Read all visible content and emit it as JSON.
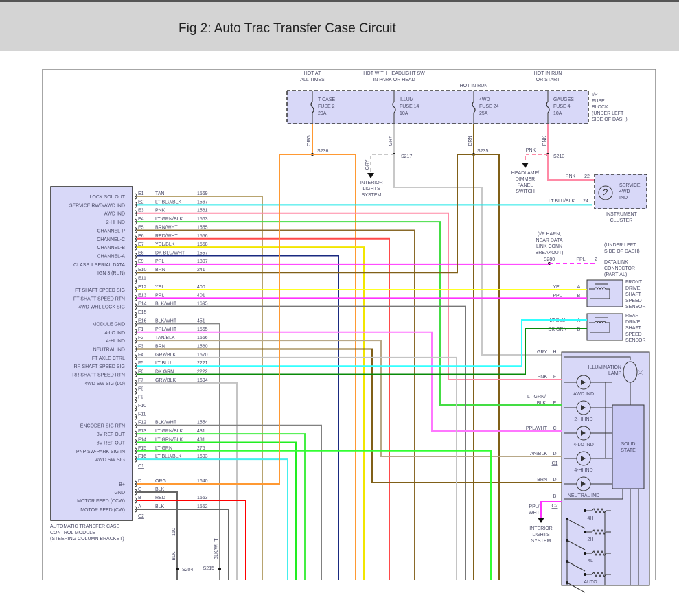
{
  "header": {
    "title": "Fig 2: Auto Trac Transfer Case Circuit"
  },
  "fuse_block": {
    "hot_labels": [
      [
        "HOT AT",
        "ALL TIMES"
      ],
      [
        "HOT WITH HEADLIGHT SW",
        "IN PARK OR HEAD"
      ],
      [
        "HOT IN RUN"
      ],
      [
        "HOT IN RUN",
        "OR START"
      ]
    ],
    "fuses": [
      [
        "T CASE",
        "FUSE 2",
        "20A"
      ],
      [
        "ILLUM",
        "FUSE 14",
        "10A"
      ],
      [
        "4WD",
        "FUSE 24",
        "25A"
      ],
      [
        "GAUGES",
        "FUSE 4",
        "10A"
      ]
    ],
    "feed_colors": [
      "ORG",
      "GRY",
      "BRN",
      "PNK"
    ],
    "label": [
      "I/P",
      "FUSE",
      "BLOCK",
      "(UNDER LEFT",
      "SIDE OF DASH)"
    ],
    "fill": "#d8d8f8"
  },
  "splices": {
    "s236": "S236",
    "s217": "S217",
    "s235": "S235",
    "s213": "S213",
    "s280": "S280",
    "s204": "S204",
    "s215": "S215"
  },
  "interior_lights_top": {
    "wire": "GRY",
    "label": [
      "INTERIOR",
      "LIGHTS",
      "SYSTEM"
    ]
  },
  "headlamp_switch": {
    "wire": "PNK",
    "label": [
      "HEADLAMP/",
      "DIMMER",
      "PANEL",
      "SWITCH"
    ]
  },
  "instrument_cluster": {
    "pnk": "PNK",
    "pnk_pin": "22",
    "ltblu": "LT BLU/BLK",
    "ltblu_pin": "24",
    "ind": [
      "SERVICE",
      "4WD",
      "IND"
    ],
    "label": [
      "INSTRUMENT",
      "CLUSTER"
    ]
  },
  "data_link": {
    "note": [
      "(I/P HARN,",
      "NEAR DATA",
      "LINK CONN",
      "BREAKOUT)"
    ],
    "wire": "PPL",
    "pin": "2",
    "loc": [
      "(UNDER LEFT",
      "SIDE OF DASH)"
    ],
    "label": [
      "DATA LINK",
      "CONNECTOR",
      "(PARTIAL)"
    ]
  },
  "front_sensor": {
    "a_wire": "YEL",
    "a": "A",
    "b_wire": "PPL",
    "b": "B",
    "label": [
      "FRONT",
      "DRIVE",
      "SHAFT",
      "SPEED",
      "SENSOR"
    ]
  },
  "rear_sensor": {
    "a_wire": "LT BLU",
    "a": "A",
    "b_wire": "DK GRN",
    "b": "B",
    "label": [
      "REAR",
      "DRIVE",
      "SHAFT",
      "SPEED",
      "SENSOR"
    ]
  },
  "switch_panel": {
    "pins": [
      [
        "GRY",
        "H"
      ],
      [
        "PNK",
        "F"
      ],
      [
        "LT GRN/",
        "BLK",
        "E"
      ],
      [
        "PPL/WHT",
        "C"
      ],
      [
        "TAN/BLK",
        "D"
      ],
      [
        "BRN",
        "D"
      ],
      [
        "",
        "B"
      ]
    ],
    "c1": "C1",
    "c2": "C2",
    "lamp": [
      "ILLUMINATION",
      "LAMP"
    ],
    "lamp_count": "(2)",
    "indicators": [
      "AWD IND",
      "2-HI IND",
      "4-LO IND",
      "4-HI IND",
      "NEUTRAL IND"
    ],
    "solid_state": [
      "SOLID",
      "STATE"
    ],
    "positions": [
      "4H",
      "2H",
      "4L",
      "AUTO"
    ],
    "out_wire": [
      "PPL/",
      "WHT"
    ],
    "out_label": [
      "INTERIOR",
      "LIGHTS",
      "SYSTEM"
    ]
  },
  "module": {
    "caption": [
      "AUTOMATIC TRANSFER CASE",
      "CONTROL MODULE",
      "(STEERING COLUMN BRACKET)"
    ],
    "c1": "C1",
    "c2": "C2",
    "pins": [
      {
        "label": "LOCK SOL OUT",
        "pin": "E1",
        "color": "TAN",
        "circuit": "1569",
        "hex": "#b8a470"
      },
      {
        "label": "SERVICE RWD/AWD IND",
        "pin": "E2",
        "color": "LT BLU/BLK",
        "circuit": "1567",
        "hex": "#22e6e6"
      },
      {
        "label": "AWD IND",
        "pin": "E3",
        "color": "PNK",
        "circuit": "1561",
        "hex": "#ff8aa6"
      },
      {
        "label": "2-HI IND",
        "pin": "E4",
        "color": "LT GRN/BLK",
        "circuit": "1563",
        "hex": "#44dd44"
      },
      {
        "label": "CHANNEL-P",
        "pin": "E5",
        "color": "BRN/WHT",
        "circuit": "1555",
        "hex": "#8a6a2a"
      },
      {
        "label": "CHANNEL-C",
        "pin": "E6",
        "color": "RED/WHT",
        "circuit": "1556",
        "hex": "#ff4a4a"
      },
      {
        "label": "CHANNEL-B",
        "pin": "E7",
        "color": "YEL/BLK",
        "circuit": "1558",
        "hex": "#f2e600"
      },
      {
        "label": "CHANNEL-A",
        "pin": "E8",
        "color": "DK BLU/WHT",
        "circuit": "1557",
        "hex": "#1a2a80"
      },
      {
        "label": "CLASS II SERIAL DATA",
        "pin": "E9",
        "color": "PPL",
        "circuit": "1807",
        "hex": "#ff33ff"
      },
      {
        "label": "IGN 3 (RUN)",
        "pin": "E10",
        "color": "BRN",
        "circuit": "241",
        "hex": "#806018"
      },
      {
        "label": "",
        "pin": "E11",
        "color": "",
        "circuit": "",
        "hex": ""
      },
      {
        "label": "FT SHAFT SPEED SIG",
        "pin": "E12",
        "color": "YEL",
        "circuit": "400",
        "hex": "#ffff22"
      },
      {
        "label": "FT SHAFT SPEED RTN",
        "pin": "E13",
        "color": "PPL",
        "circuit": "401",
        "hex": "#ff33ff"
      },
      {
        "label": "4WD WHL LOCK SIG",
        "pin": "E14",
        "color": "BLK/WHT",
        "circuit": "1695",
        "hex": "#777777"
      },
      {
        "label": "",
        "pin": "E15",
        "color": "",
        "circuit": "",
        "hex": ""
      },
      {
        "label": "MODULE GND",
        "pin": "E16",
        "color": "BLK/WHT",
        "circuit": "451",
        "hex": "#888888"
      },
      {
        "label": "4-LO IND",
        "pin": "F1",
        "color": "PPL/WHT",
        "circuit": "1565",
        "hex": "#ff77ff"
      },
      {
        "label": "4-HI IND",
        "pin": "F2",
        "color": "TAN/BLK",
        "circuit": "1566",
        "hex": "#b8a888"
      },
      {
        "label": "NEUTRAL IND",
        "pin": "F3",
        "color": "BRN",
        "circuit": "1560",
        "hex": "#806018"
      },
      {
        "label": "FT AXLE CTRL",
        "pin": "F4",
        "color": "GRY/BLK",
        "circuit": "1570",
        "hex": "#c4c4c4"
      },
      {
        "label": "RR SHAFT SPEED SIG",
        "pin": "F5",
        "color": "LT BLU",
        "circuit": "2221",
        "hex": "#33ffff"
      },
      {
        "label": "RR SHAFT SPEED RTN",
        "pin": "F6",
        "color": "DK GRN",
        "circuit": "2222",
        "hex": "#0a8a0a"
      },
      {
        "label": "4WD SW SIG (LO)",
        "pin": "F7",
        "color": "GRY/BLK",
        "circuit": "1694",
        "hex": "#c4c4c4"
      },
      {
        "label": "",
        "pin": "F8",
        "color": "",
        "circuit": "",
        "hex": ""
      },
      {
        "label": "",
        "pin": "F9",
        "color": "",
        "circuit": "",
        "hex": ""
      },
      {
        "label": "",
        "pin": "F10",
        "color": "",
        "circuit": "",
        "hex": ""
      },
      {
        "label": "",
        "pin": "F11",
        "color": "",
        "circuit": "",
        "hex": ""
      },
      {
        "label": "ENCODER SIG RTN",
        "pin": "F12",
        "color": "BLK/WHT",
        "circuit": "1554",
        "hex": "#808080"
      },
      {
        "label": "+8V REF OUT",
        "pin": "F13",
        "color": "LT GRN/BLK",
        "circuit": "431",
        "hex": "#44ee44"
      },
      {
        "label": "+8V REF OUT",
        "pin": "F14",
        "color": "LT GRN/BLK",
        "circuit": "431",
        "hex": "#22ee22"
      },
      {
        "label": "PNP SW-PARK SIG IN",
        "pin": "F15",
        "color": "LT GRN",
        "circuit": "275",
        "hex": "#33ff33"
      },
      {
        "label": "4WD SW SIG",
        "pin": "F16",
        "color": "LT BLU/BLK",
        "circuit": "1693",
        "hex": "#44eeee"
      },
      {
        "label": "B+",
        "pin": "D",
        "color": "ORG",
        "circuit": "1640",
        "hex": "#ff9933"
      },
      {
        "label": "GND",
        "pin": "C",
        "color": "BLK",
        "circuit": "",
        "hex": "#666666"
      },
      {
        "label": "MOTOR FEED (CCW)",
        "pin": "B",
        "color": "RED",
        "circuit": "1553",
        "hex": "#ff0000"
      },
      {
        "label": "MOTOR FEED (CW)",
        "pin": "A",
        "color": "BLK",
        "circuit": "1552",
        "hex": "#666666"
      }
    ]
  },
  "bottom_wires": {
    "gnd_circuit": "150",
    "gnd_color": "BLK",
    "s215_color": "BLK/WHT"
  }
}
